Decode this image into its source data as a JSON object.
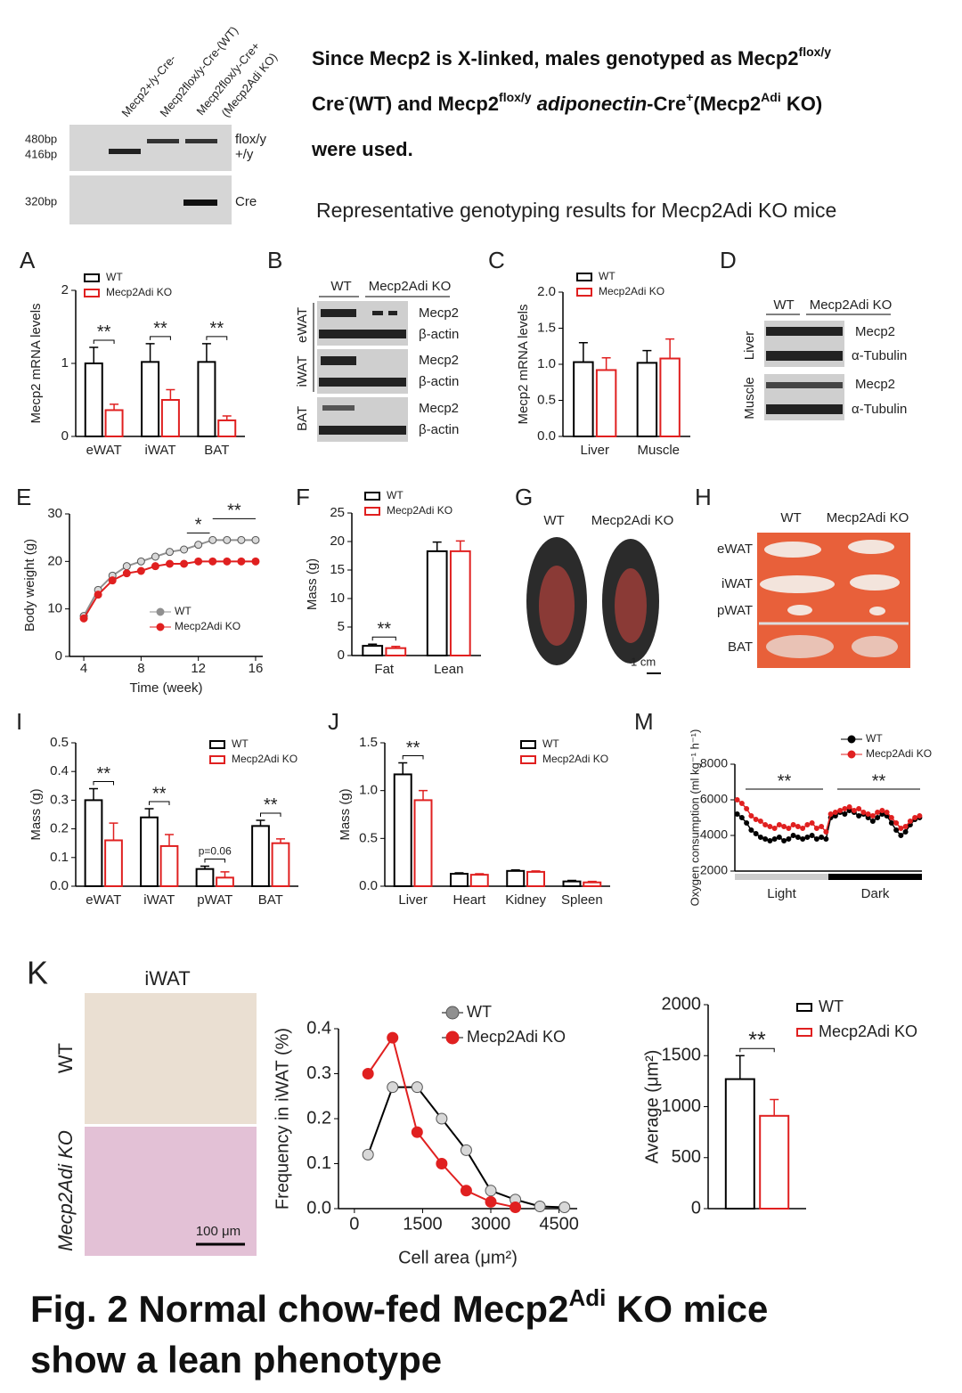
{
  "intro": [
    "Since Mecp2 is X-linked, males genotyped as Mecp2",
    "flox/y",
    "Cre",
    "-",
    "(WT) and Mecp2",
    "flox/y",
    " adiponectin",
    "-Cre",
    "+",
    "(Mecp2",
    "Adi",
    " KO)",
    "were used."
  ],
  "gel": {
    "lanes": [
      "Mecp2+/y-Cre-",
      "Mecp2flox/y-Cre-(WT)",
      "Mecp2flox/y-Cre+",
      "(Mecp2Adi KO)"
    ],
    "sizes": [
      "480bp",
      "416bp",
      "320bp"
    ],
    "bands": [
      "flox/y",
      "+/y",
      "Cre"
    ],
    "caption": "Representative genotyping results for Mecp2Adi KO mice"
  },
  "panel_labels": [
    "A",
    "B",
    "C",
    "D",
    "E",
    "F",
    "G",
    "H",
    "I",
    "J",
    "M",
    "K"
  ],
  "blot_b": {
    "columns": [
      "WT",
      "Mecp2Adi KO"
    ],
    "tissues": [
      "eWAT",
      "iWAT",
      "BAT"
    ],
    "proteins": [
      "Mecp2",
      "β-actin"
    ]
  },
  "blot_d": {
    "columns": [
      "WT",
      "Mecp2Adi KO"
    ],
    "tissues": [
      "Liver",
      "Muscle"
    ],
    "proteins": [
      "Mecp2",
      "α-Tubulin"
    ]
  },
  "photo_g": {
    "columns": [
      "WT",
      "Mecp2Adi KO"
    ],
    "scale": "1 cm"
  },
  "photo_h": {
    "columns": [
      "WT",
      "Mecp2Adi KO"
    ],
    "rows": [
      "eWAT",
      "iWAT",
      "pWAT",
      "BAT"
    ]
  },
  "histology": {
    "title": "iWAT",
    "rows": [
      "WT",
      "Mecp2Adi KO"
    ],
    "scale": "100 μm"
  },
  "figure_title": [
    "Fig. 2 Normal chow-fed Mecp2",
    "Adi",
    " KO mice",
    "show a lean phenotype"
  ],
  "chart_data": [
    {
      "type": "bar",
      "ylabel": "Mecp2 mRNA levels",
      "categories": [
        "eWAT",
        "iWAT",
        "BAT"
      ],
      "series": [
        {
          "name": "WT",
          "color": "#000000",
          "values": [
            1.0,
            1.02,
            1.02
          ],
          "errors": [
            0.22,
            0.25,
            0.25
          ]
        },
        {
          "name": "Mecp2Adi KO",
          "color": "#e02020",
          "values": [
            0.36,
            0.5,
            0.22
          ],
          "errors": [
            0.08,
            0.14,
            0.06
          ]
        }
      ],
      "ylim": [
        0,
        2
      ],
      "yticks": [
        0,
        1,
        2
      ],
      "annotations": [
        "**",
        "**",
        "**"
      ]
    },
    {
      "type": "bar",
      "ylabel": "Mecp2 mRNA levels",
      "categories": [
        "Liver",
        "Muscle"
      ],
      "series": [
        {
          "name": "WT",
          "color": "#000000",
          "values": [
            1.03,
            1.02
          ],
          "errors": [
            0.27,
            0.17
          ]
        },
        {
          "name": "Mecp2Adi KO",
          "color": "#e02020",
          "values": [
            0.92,
            1.08
          ],
          "errors": [
            0.17,
            0.27
          ]
        }
      ],
      "ylim": [
        0,
        2
      ],
      "yticks": [
        {
          "value": 0,
          "label": "0.0"
        },
        {
          "value": 0.5,
          "label": "0.5"
        },
        {
          "value": 1,
          "label": "1.0"
        },
        {
          "value": 1.5,
          "label": "1.5"
        },
        {
          "value": 2,
          "label": "2.0"
        }
      ]
    },
    {
      "type": "line",
      "ylabel": "Body weight (g)",
      "xlabel": "Time (week)",
      "x": [
        4,
        5,
        6,
        7,
        8,
        9,
        10,
        11,
        12,
        13,
        14,
        15,
        16
      ],
      "series": [
        {
          "name": "WT",
          "color": "#909090",
          "values": [
            8.5,
            14,
            17,
            19,
            20,
            21,
            22,
            22.5,
            23.5,
            24.5,
            24.5,
            24.5,
            24.5
          ]
        },
        {
          "name": "Mecp2Adi KO",
          "color": "#e02020",
          "values": [
            8,
            13,
            16,
            17.5,
            18,
            19,
            19.5,
            19.5,
            20,
            20,
            20,
            20,
            20
          ]
        }
      ],
      "xlim": [
        3,
        16.5
      ],
      "xticks": [
        4,
        8,
        12,
        16
      ],
      "ylim": [
        0,
        30
      ],
      "yticks": [
        0,
        10,
        20,
        30
      ],
      "annotations": [
        "*",
        "**"
      ]
    },
    {
      "type": "bar",
      "ylabel": "Mass (g)",
      "categories": [
        "Fat",
        "Lean"
      ],
      "series": [
        {
          "name": "WT",
          "color": "#000000",
          "values": [
            1.7,
            18.3
          ],
          "errors": [
            0.3,
            1.6
          ]
        },
        {
          "name": "Mecp2Adi KO",
          "color": "#e02020",
          "values": [
            1.3,
            18.3
          ],
          "errors": [
            0.3,
            1.8
          ]
        }
      ],
      "ylim": [
        0,
        25
      ],
      "yticks": [
        0,
        5,
        10,
        15,
        20,
        25
      ],
      "annotations": [
        "**",
        null
      ]
    },
    {
      "type": "bar",
      "ylabel": "Mass (g)",
      "categories": [
        "eWAT",
        "iWAT",
        "pWAT",
        "BAT"
      ],
      "series": [
        {
          "name": "WT",
          "color": "#000000",
          "values": [
            0.3,
            0.24,
            0.06,
            0.21
          ],
          "errors": [
            0.04,
            0.03,
            0.01,
            0.02
          ]
        },
        {
          "name": "Mecp2Adi KO",
          "color": "#e02020",
          "values": [
            0.16,
            0.14,
            0.03,
            0.15
          ],
          "errors": [
            0.06,
            0.04,
            0.02,
            0.015
          ]
        }
      ],
      "ylim": [
        0,
        0.5
      ],
      "yticks": [
        {
          "value": 0,
          "label": "0.0"
        },
        {
          "value": 0.1,
          "label": "0.1"
        },
        {
          "value": 0.2,
          "label": "0.2"
        },
        {
          "value": 0.3,
          "label": "0.3"
        },
        {
          "value": 0.4,
          "label": "0.4"
        },
        {
          "value": 0.5,
          "label": "0.5"
        }
      ],
      "annotations": [
        "**",
        "**",
        "p=0.06",
        "**"
      ]
    },
    {
      "type": "bar",
      "ylabel": "Mass (g)",
      "categories": [
        "Liver",
        "Heart",
        "Kidney",
        "Spleen"
      ],
      "series": [
        {
          "name": "WT",
          "color": "#000000",
          "values": [
            1.17,
            0.13,
            0.16,
            0.05
          ],
          "errors": [
            0.12,
            0.01,
            0.01,
            0.01
          ]
        },
        {
          "name": "Mecp2Adi KO",
          "color": "#e02020",
          "values": [
            0.9,
            0.12,
            0.15,
            0.04
          ],
          "errors": [
            0.1,
            0.01,
            0.01,
            0.01
          ]
        }
      ],
      "ylim": [
        0,
        1.5
      ],
      "yticks": [
        {
          "value": 0,
          "label": "0.0"
        },
        {
          "value": 0.5,
          "label": "0.5"
        },
        {
          "value": 1,
          "label": "1.0"
        },
        {
          "value": 1.5,
          "label": "1.5"
        }
      ],
      "annotations": [
        "**",
        null,
        null,
        null
      ]
    },
    {
      "type": "line",
      "ylabel": "Oxygen consumption (ml kg⁻¹ h⁻¹)",
      "phases": [
        "Light",
        "Dark"
      ],
      "series": [
        {
          "name": "WT",
          "color": "#000000",
          "values": [
            5200,
            5000,
            4700,
            4300,
            4100,
            3900,
            3800,
            3700,
            3800,
            3900,
            3700,
            3800,
            4000,
            3900,
            3800,
            3900,
            4000,
            3800,
            3900,
            3800,
            5000,
            5100,
            5300,
            5200,
            5400,
            5300,
            5100,
            5200,
            5000,
            4800,
            5000,
            5200,
            5100,
            4700,
            4300,
            4000,
            4200,
            4600,
            4900,
            5000
          ]
        },
        {
          "name": "Mecp2Adi KO",
          "color": "#e02020",
          "values": [
            6000,
            5800,
            5500,
            5100,
            4900,
            4800,
            4600,
            4500,
            4400,
            4600,
            4500,
            4400,
            4600,
            4500,
            4400,
            4600,
            4700,
            4400,
            4500,
            4200,
            5200,
            5300,
            5400,
            5500,
            5600,
            5400,
            5500,
            5300,
            5200,
            5100,
            5300,
            5400,
            5300,
            5000,
            4700,
            4400,
            4500,
            4800,
            5000,
            5100
          ]
        }
      ],
      "ylim": [
        2000,
        8000
      ],
      "yticks": [
        2000,
        4000,
        6000,
        8000
      ],
      "annotations": [
        "**",
        "**"
      ]
    },
    {
      "type": "line",
      "ylabel": "Frequency in iWAT (%)",
      "xlabel": "Cell area (μm²)",
      "x": [
        300,
        840,
        1380,
        1920,
        2460,
        3000,
        3540,
        4080,
        4620
      ],
      "series": [
        {
          "name": "WT",
          "color": "#909090",
          "values": [
            0.12,
            0.27,
            0.27,
            0.2,
            0.13,
            0.04,
            0.02,
            0.005,
            0.003
          ]
        },
        {
          "name": "Mecp2Adi KO",
          "color": "#e02020",
          "values": [
            0.3,
            0.38,
            0.17,
            0.1,
            0.04,
            0.015,
            0.003,
            null,
            null
          ]
        }
      ],
      "xlim": [
        -350,
        4900
      ],
      "xticks": [
        0,
        1500,
        3000,
        4500
      ],
      "ylim": [
        0,
        0.4
      ],
      "yticks": [
        {
          "value": 0,
          "label": "0.0"
        },
        {
          "value": 0.1,
          "label": "0.1"
        },
        {
          "value": 0.2,
          "label": "0.2"
        },
        {
          "value": 0.3,
          "label": "0.3"
        },
        {
          "value": 0.4,
          "label": "0.4"
        }
      ]
    },
    {
      "type": "bar",
      "ylabel": "Average (μm²)",
      "categories": [
        null
      ],
      "series": [
        {
          "name": "WT",
          "color": "#000000",
          "values": [
            1270
          ],
          "errors": [
            230
          ]
        },
        {
          "name": "Mecp2Adi KO",
          "color": "#e02020",
          "values": [
            910
          ],
          "errors": [
            160
          ]
        }
      ],
      "ylim": [
        0,
        2000
      ],
      "yticks": [
        0,
        500,
        1000,
        1500,
        2000
      ],
      "annotations": [
        "**"
      ]
    }
  ]
}
